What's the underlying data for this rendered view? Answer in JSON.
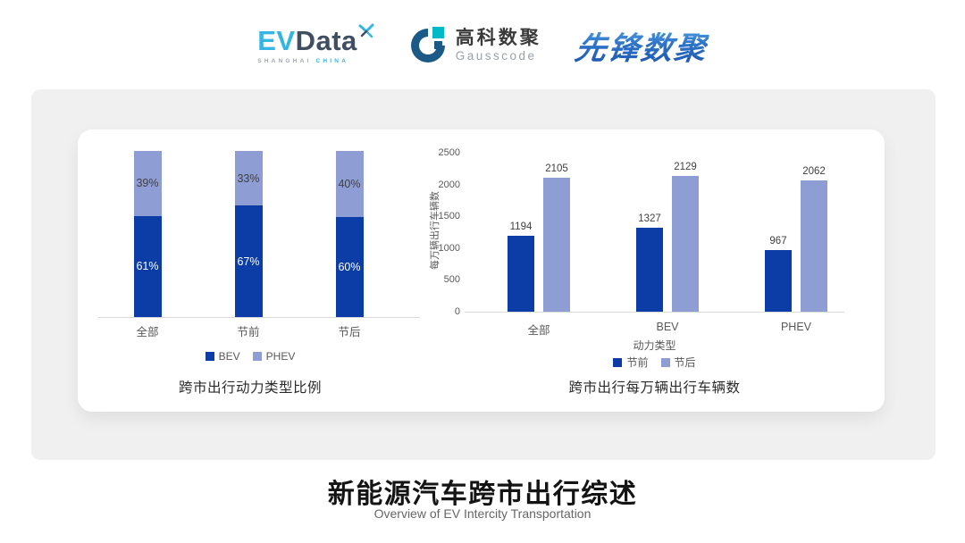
{
  "header": {
    "evdata": {
      "ev": "EV",
      "data": "Data",
      "sub_left": "SHANGHAI",
      "sub_right": "CHINA",
      "x_icon": "pinwheel-x-icon"
    },
    "gausscode": {
      "cn": "高科数聚",
      "en": "Gausscode",
      "icon": "g-ring-icon"
    },
    "pioneer": {
      "text": "先锋数聚"
    }
  },
  "colors": {
    "bev_dark_blue": "#0c3da6",
    "phev_light_blue": "#8e9dd4",
    "canvas_gray": "#f0f0f1",
    "evdata_cyan": "#35b5e3",
    "evdata_slate": "#404e61",
    "gausscode_dark": "#1b5a86",
    "gausscode_teal": "#00bac8",
    "pioneer_blue": "#2a6fc4",
    "axis_line": "#d9d9d9",
    "label_gray": "#595959",
    "value_gray": "#404040"
  },
  "chart_data": [
    {
      "type": "bar",
      "subtype": "stacked-percent",
      "title": "跨市出行动力类型比例",
      "categories": [
        "全部",
        "节前",
        "节后"
      ],
      "series": [
        {
          "name": "BEV",
          "color": "#0c3da6",
          "label_color": "#ffffff",
          "values": [
            61,
            67,
            60
          ]
        },
        {
          "name": "PHEV",
          "color": "#8e9dd4",
          "label_color": "#404040",
          "values": [
            39,
            33,
            40
          ]
        }
      ],
      "value_suffix": "%",
      "ylim": [
        0,
        100
      ],
      "grid": false,
      "legend_position": "bottom"
    },
    {
      "type": "bar",
      "subtype": "grouped",
      "title": "跨市出行每万辆出行车辆数",
      "xlabel": "动力类型",
      "ylabel": "每万辆出行车辆数",
      "categories": [
        "全部",
        "BEV",
        "PHEV"
      ],
      "series": [
        {
          "name": "节前",
          "color": "#0c3da6",
          "values": [
            1194,
            1327,
            967
          ]
        },
        {
          "name": "节后",
          "color": "#8e9dd4",
          "values": [
            2105,
            2129,
            2062
          ]
        }
      ],
      "ylim": [
        0,
        2500
      ],
      "yticks": [
        0,
        500,
        1000,
        1500,
        2000,
        2500
      ],
      "grid": false,
      "legend_position": "bottom"
    }
  ],
  "footer": {
    "title": "新能源汽车跨市出行综述",
    "subtitle": "Overview of EV Intercity Transportation"
  }
}
